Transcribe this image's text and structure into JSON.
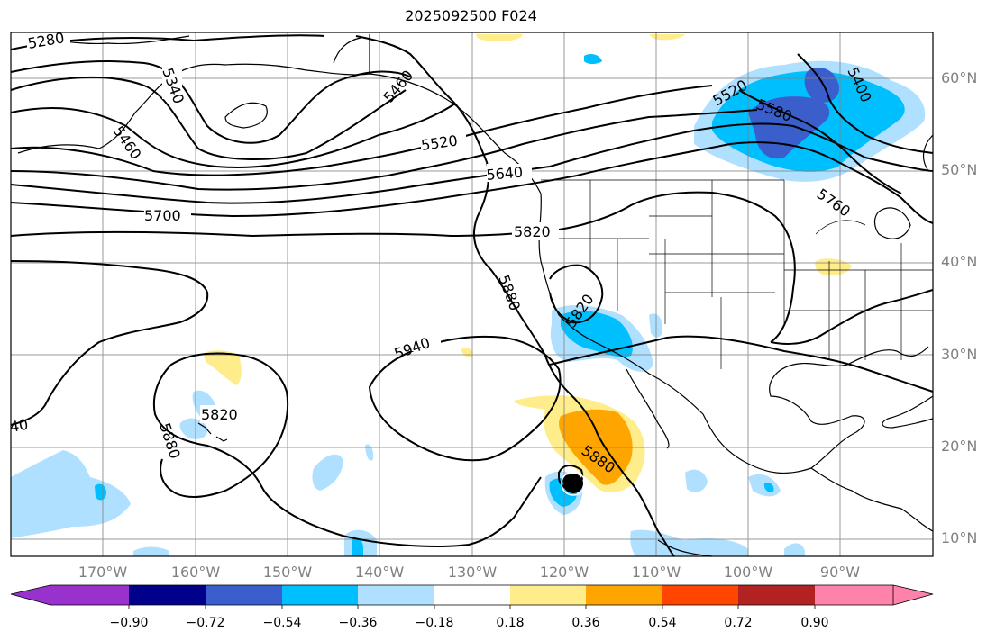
{
  "title": "2025092500 F024",
  "lat_labels": [
    "60°N",
    "50°N",
    "40°N",
    "30°N",
    "20°N",
    "10°N"
  ],
  "lon_labels": [
    "170°W",
    "160°W",
    "150°W",
    "140°W",
    "130°W",
    "120°W",
    "110°W",
    "100°W",
    "90°W"
  ],
  "contour_labels": [
    "5280",
    "5340",
    "5460",
    "5460",
    "5520",
    "5640",
    "5700",
    "5820",
    "5880",
    "5940",
    "5820",
    "5880",
    "5820",
    "5880",
    "5580",
    "5400",
    "5760",
    "5520",
    "40"
  ],
  "colorbar": {
    "ticks": [
      "−0.90",
      "−0.72",
      "−0.54",
      "−0.36",
      "−0.18",
      "0.18",
      "0.36",
      "0.54",
      "0.72",
      "0.90"
    ],
    "colors": [
      "#9932cc",
      "#00008b",
      "#3a5fcd",
      "#00bfff",
      "#b0e0ff",
      "#ffffff",
      "#ffec8b",
      "#ffa500",
      "#ff4500",
      "#b22222",
      "#ff82ab"
    ]
  },
  "colors": {
    "grid": "#808080",
    "contour": "#000000",
    "neg_light": "#b0e0ff",
    "neg_mid": "#00bfff",
    "neg_dark": "#3a5fcd",
    "pos_light": "#ffec8b",
    "pos_mid": "#ffa500"
  }
}
